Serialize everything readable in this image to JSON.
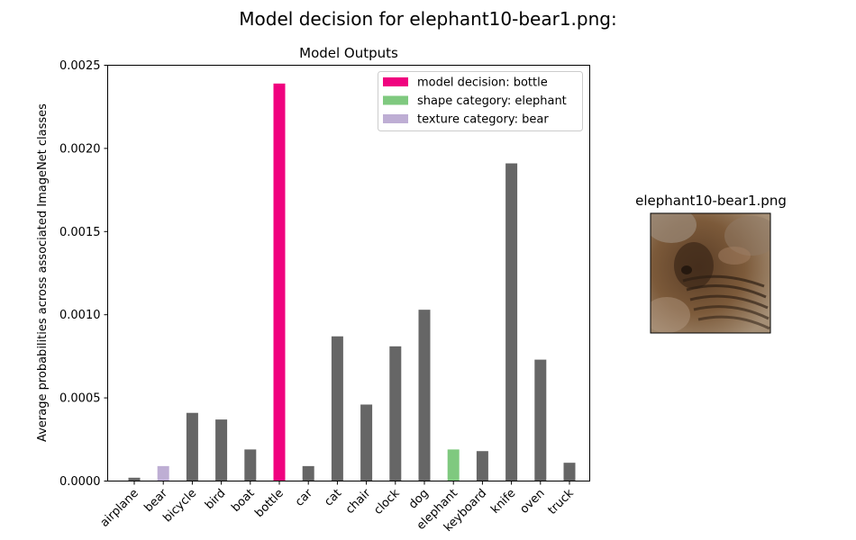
{
  "figure": {
    "suptitle": "Model decision for elephant10-bear1.png:"
  },
  "chart_data": {
    "type": "bar",
    "title": "Model Outputs",
    "xlabel": "",
    "ylabel": "Average probabilities across associated ImageNet classes",
    "categories": [
      "airplane",
      "bear",
      "bicycle",
      "bird",
      "boat",
      "bottle",
      "car",
      "cat",
      "chair",
      "clock",
      "dog",
      "elephant",
      "keyboard",
      "knife",
      "oven",
      "truck"
    ],
    "values": [
      2e-05,
      9e-05,
      0.00041,
      0.00037,
      0.00019,
      0.00239,
      9e-05,
      0.00087,
      0.00046,
      0.00081,
      0.00103,
      0.00019,
      0.00018,
      0.00191,
      0.00073,
      0.00011
    ],
    "ylim": [
      0,
      0.0025
    ],
    "yticks": [
      "0.0000",
      "0.0005",
      "0.0010",
      "0.0015",
      "0.0020",
      "0.0025"
    ],
    "ytick_values": [
      0,
      0.0005,
      0.001,
      0.0015,
      0.002,
      0.0025
    ],
    "grid": false,
    "legend_position": "top-right",
    "legend": [
      {
        "label": "model decision: bottle",
        "color": "#f0027f"
      },
      {
        "label": "shape category: elephant",
        "color": "#7fc97f"
      },
      {
        "label": "texture category: bear",
        "color": "#beaed4"
      }
    ],
    "bar_colors": {
      "default": "#666666",
      "bottle": "#f0027f",
      "elephant": "#7fc97f",
      "bear": "#beaed4"
    }
  },
  "image_panel": {
    "title": "elephant10-bear1.png"
  }
}
